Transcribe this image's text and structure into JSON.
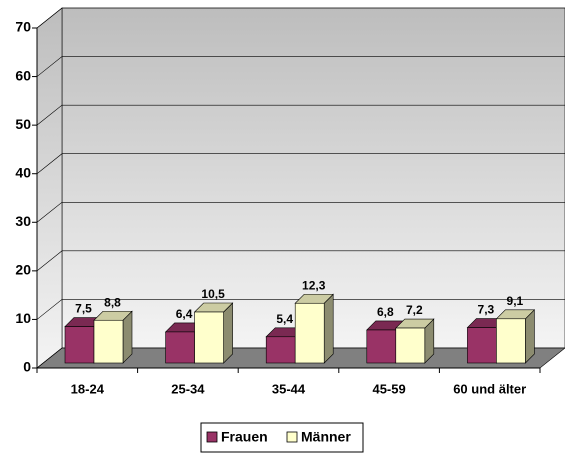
{
  "chart_data": {
    "type": "bar3d",
    "categories": [
      "18-24",
      "25-34",
      "35-44",
      "45-59",
      "60 und älter"
    ],
    "series": [
      {
        "name": "Frauen",
        "color": "#993366",
        "values": [
          7.5,
          6.4,
          5.4,
          6.8,
          7.3
        ],
        "value_labels": [
          "7,5",
          "6,4",
          "5,4",
          "6,8",
          "7,3"
        ]
      },
      {
        "name": "Männer",
        "color": "#ffffcc",
        "values": [
          8.8,
          10.5,
          12.3,
          7.2,
          9.1
        ],
        "value_labels": [
          "8,8",
          "10,5",
          "12,3",
          "7,2",
          "9,1"
        ]
      }
    ],
    "ylim": [
      0,
      70
    ],
    "yticks": [
      0,
      10,
      20,
      30,
      40,
      50,
      60,
      70
    ],
    "grid": true,
    "legend": "bottom"
  }
}
